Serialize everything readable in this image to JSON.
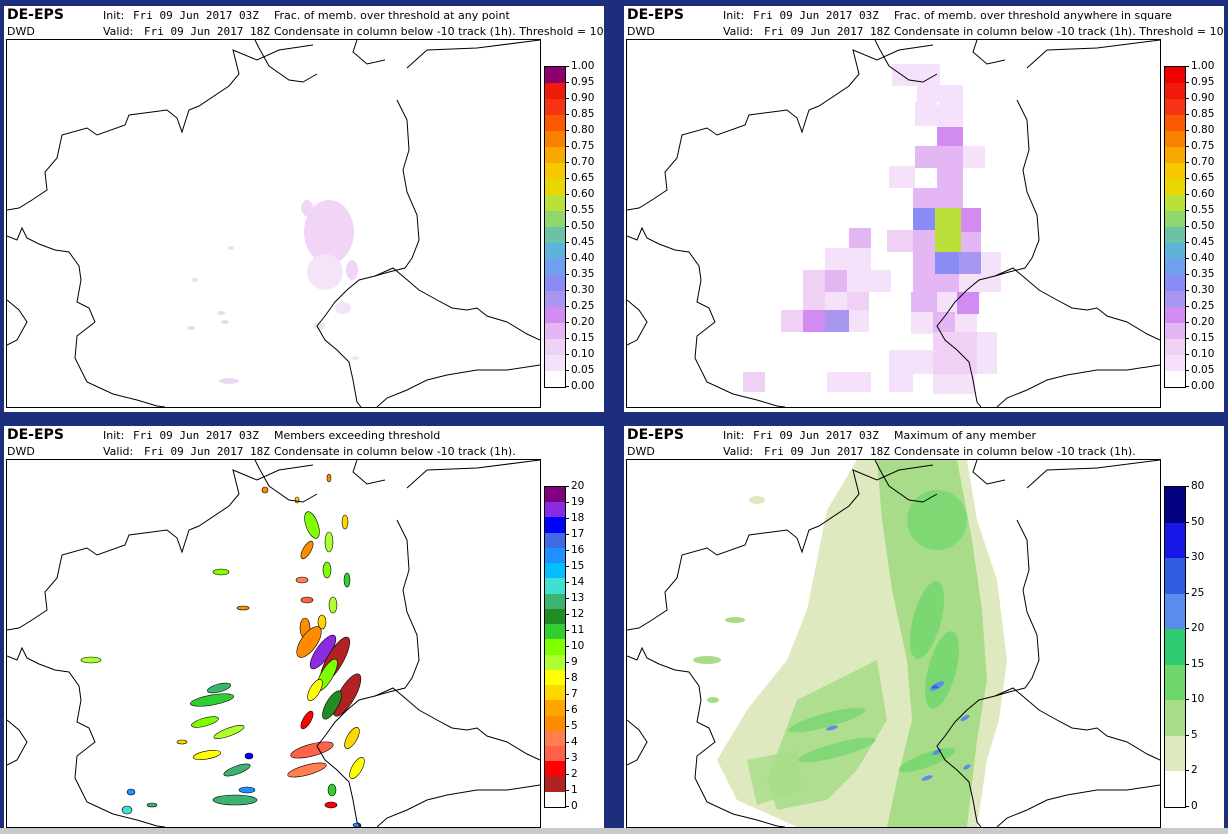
{
  "panels": [
    {
      "brand": "DE-EPS",
      "org": "DWD",
      "init_label": "Init:",
      "init_value": "Fri 09 Jun 2017 03Z",
      "valid_label": "Valid:",
      "valid_value": "Fri 09 Jun 2017 18Z",
      "desc_line1": "Frac. of memb. over threshold at any point",
      "desc_line2": "Condensate in column below -10 track (1h). Threshold = 10",
      "colorbar": {
        "ticks": [
          "0.00",
          "0.05",
          "0.10",
          "0.15",
          "0.20",
          "0.25",
          "0.30",
          "0.35",
          "0.40",
          "0.45",
          "0.50",
          "0.55",
          "0.60",
          "0.65",
          "0.70",
          "0.75",
          "0.80",
          "0.85",
          "0.90",
          "0.95",
          "1.00"
        ],
        "colors": [
          "#ffffff",
          "#f5e1f9",
          "#efd1f6",
          "#e4b6f4",
          "#d28cf1",
          "#a797f1",
          "#8b8bf5",
          "#6fa0ee",
          "#5fb3d8",
          "#6cc2a6",
          "#8fd66c",
          "#bbe03a",
          "#e6d800",
          "#f5c800",
          "#f8a800",
          "#fa8000",
          "#fb5800",
          "#f83214",
          "#f01a0a",
          "#8b006b"
        ]
      }
    },
    {
      "brand": "DE-EPS",
      "org": "DWD",
      "init_label": "Init:",
      "init_value": "Fri 09 Jun 2017 03Z",
      "valid_label": "Valid:",
      "valid_value": "Fri 09 Jun 2017 18Z",
      "desc_line1": "Frac. of memb. over threshold anywhere in square",
      "desc_line2": "Condensate in column below -10 track (1h). Threshold = 10",
      "colorbar": {
        "ticks": [
          "0.00",
          "0.05",
          "0.10",
          "0.15",
          "0.20",
          "0.25",
          "0.30",
          "0.35",
          "0.40",
          "0.45",
          "0.50",
          "0.55",
          "0.60",
          "0.65",
          "0.70",
          "0.75",
          "0.80",
          "0.85",
          "0.90",
          "0.95",
          "1.00"
        ],
        "colors": [
          "#ffffff",
          "#f5e1f9",
          "#efd1f6",
          "#e4b6f4",
          "#d28cf1",
          "#a797f1",
          "#8b8bf5",
          "#6fa0ee",
          "#5fb3d8",
          "#6cc2a6",
          "#8fd66c",
          "#bbe03a",
          "#e6d800",
          "#f5c800",
          "#f8a800",
          "#fa8000",
          "#fb5800",
          "#f83214",
          "#f01a0a",
          "#f00000"
        ]
      }
    },
    {
      "brand": "DE-EPS",
      "org": "DWD",
      "init_label": "Init:",
      "init_value": "Fri 09 Jun 2017 03Z",
      "valid_label": "Valid:",
      "valid_value": "Fri 09 Jun 2017 18Z",
      "desc_line1": "Members exceeding threshold",
      "desc_line2": "Condensate in column below -10 track (1h).",
      "colorbar": {
        "ticks": [
          "0",
          "1",
          "2",
          "3",
          "4",
          "5",
          "6",
          "7",
          "8",
          "9",
          "10",
          "11",
          "12",
          "13",
          "14",
          "15",
          "16",
          "17",
          "18",
          "19",
          "20"
        ],
        "colors": [
          "#ffffff",
          "#b22222",
          "#ff0000",
          "#ff6347",
          "#ff7f50",
          "#ff8c00",
          "#ffa500",
          "#ffd700",
          "#ffff00",
          "#adff2f",
          "#7fff00",
          "#32cd32",
          "#228b22",
          "#3cb371",
          "#40e0d0",
          "#00bfff",
          "#1e90ff",
          "#4169e1",
          "#0000ff",
          "#8a2be2",
          "#800080"
        ]
      }
    },
    {
      "brand": "DE-EPS",
      "org": "DWD",
      "init_label": "Init:",
      "init_value": "Fri 09 Jun 2017 03Z",
      "valid_label": "Valid:",
      "valid_value": "Fri 09 Jun 2017 18Z",
      "desc_line1": "Maximum of any member",
      "desc_line2": "Condensate in column below -10 track (1h).",
      "colorbar": {
        "ticks": [
          "0",
          "2",
          "5",
          "10",
          "15",
          "20",
          "25",
          "30",
          "50",
          "80"
        ],
        "colors": [
          "#ffffff",
          "#dfe9bf",
          "#a8dc88",
          "#6fd66c",
          "#2ecc6e",
          "#5b8bec",
          "#2f5fe0",
          "#1717e8",
          "#000080"
        ]
      }
    }
  ]
}
